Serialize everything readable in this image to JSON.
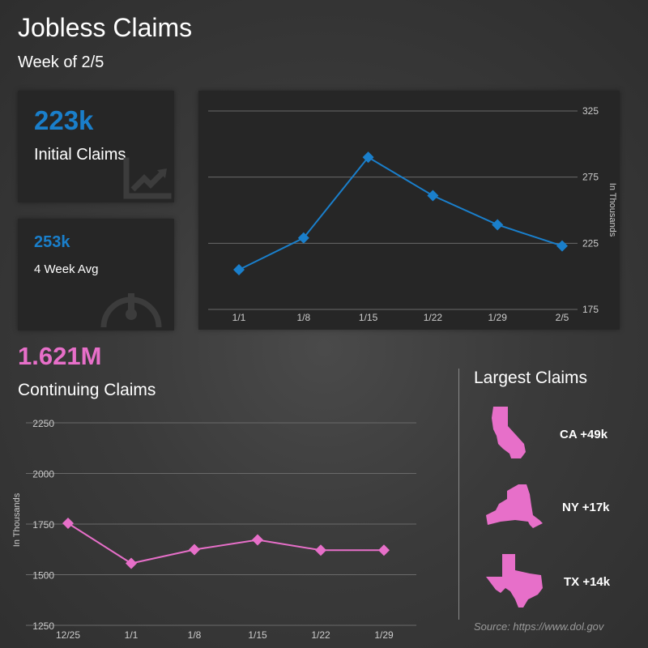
{
  "header": {
    "title": "Jobless Claims",
    "subtitle": "Week of 2/5"
  },
  "kpis": {
    "initial": {
      "value": "223k",
      "label": "Initial Claims",
      "icon": "trending-up-chart-icon"
    },
    "average": {
      "value": "253k",
      "label": "4 Week Avg",
      "icon": "gauge-icon"
    }
  },
  "continuing": {
    "value": "1.621M",
    "label": "Continuing Claims"
  },
  "largest": {
    "title": "Largest Claims",
    "items": [
      {
        "state": "CA",
        "label": "CA +49k",
        "icon": "california-map-icon"
      },
      {
        "state": "NY",
        "label": "NY +17k",
        "icon": "new-york-map-icon"
      },
      {
        "state": "TX",
        "label": "TX +14k",
        "icon": "texas-map-icon"
      }
    ]
  },
  "source": "Source: https://www.dol.gov",
  "colors": {
    "blue": "#1a7fcb",
    "pink": "#e76fc9",
    "card": "#262626"
  },
  "chart_data": [
    {
      "type": "line",
      "categories": [
        "1/1",
        "1/8",
        "1/15",
        "1/22",
        "1/29",
        "2/5"
      ],
      "values": [
        205,
        229,
        290,
        261,
        239,
        223
      ],
      "ylim": [
        175,
        325
      ],
      "yticks": [
        175,
        225,
        275,
        325
      ],
      "ylabel": "In Thousands",
      "marker": "diamond",
      "color": "#1a7fcb",
      "grid": true
    },
    {
      "type": "line",
      "categories": [
        "12/25",
        "1/1",
        "1/8",
        "1/15",
        "1/22",
        "1/29"
      ],
      "values": [
        1754,
        1556,
        1624,
        1672,
        1621,
        1621
      ],
      "ylim": [
        1250,
        2250
      ],
      "yticks": [
        1250,
        1500,
        1750,
        2000,
        2250
      ],
      "ylabel": "In Thousands",
      "marker": "diamond",
      "color": "#e76fc9",
      "grid": true
    }
  ]
}
